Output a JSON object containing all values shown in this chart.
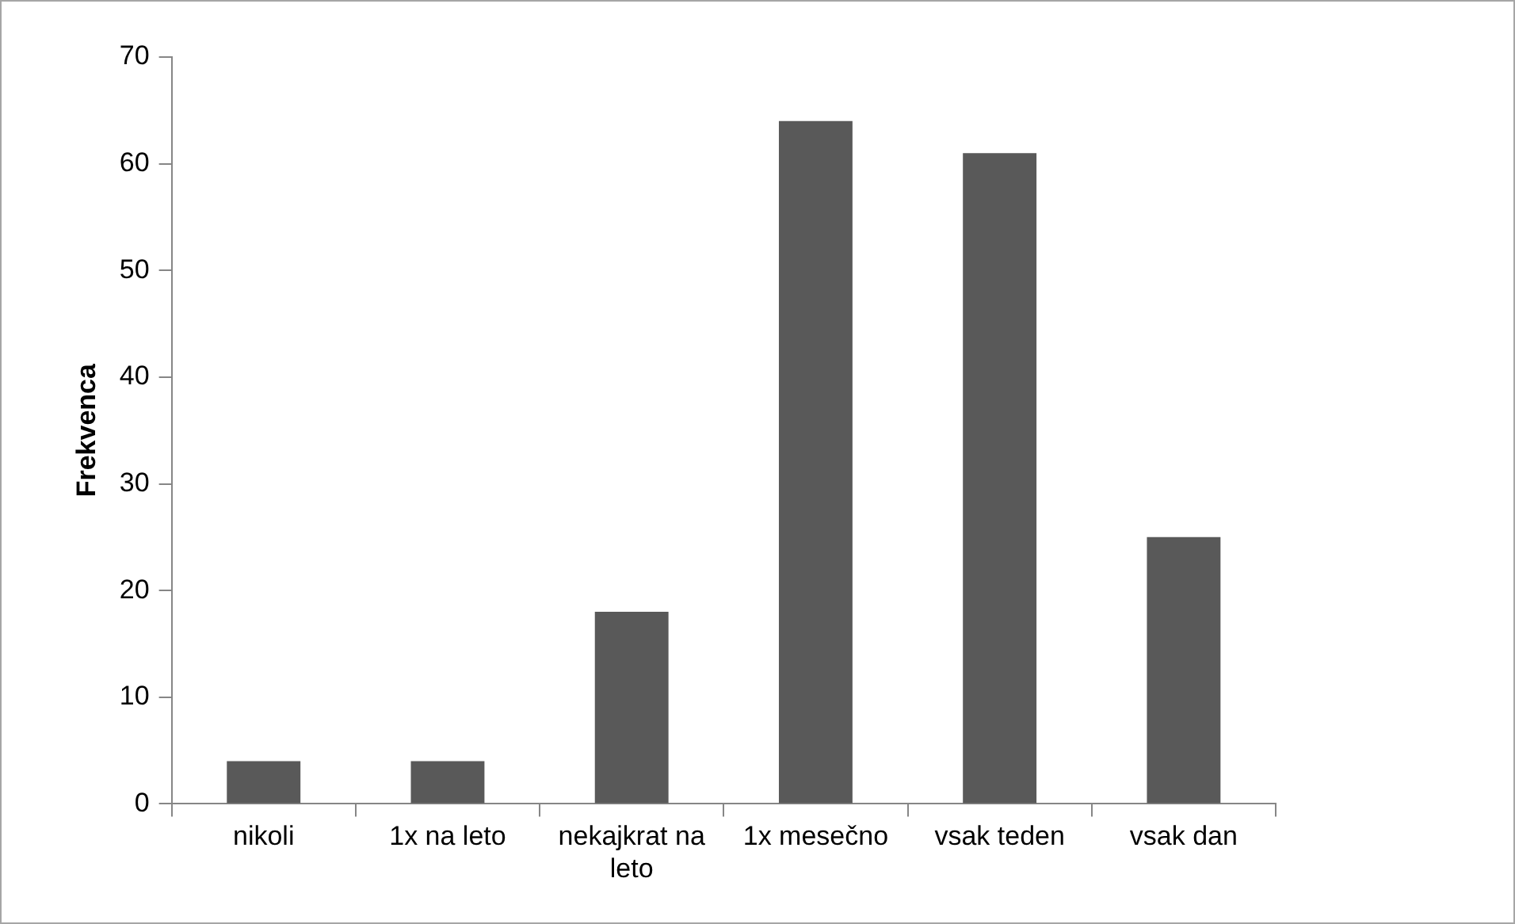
{
  "chart_data": {
    "type": "bar",
    "ylabel": "Frekvenca",
    "categories": [
      "nikoli",
      "1x na leto",
      "nekajkrat na leto",
      "1x mesečno",
      "vsak teden",
      "vsak dan"
    ],
    "values": [
      4,
      4,
      18,
      64,
      61,
      25
    ],
    "color": "#595959",
    "ylim": [
      0,
      70
    ],
    "yticks": [
      0,
      10,
      20,
      30,
      40,
      50,
      60,
      70
    ],
    "grid": false,
    "legend": false
  }
}
